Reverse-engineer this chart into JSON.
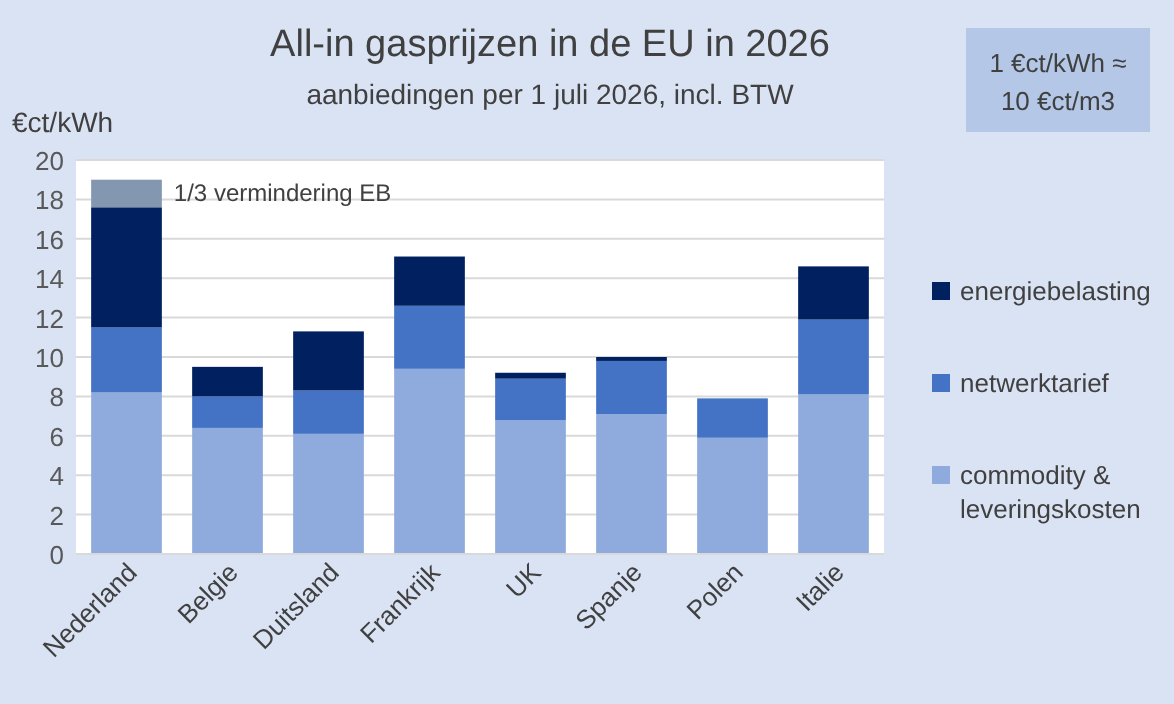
{
  "chart_data": {
    "type": "bar",
    "title": "All-in gasprijzen in de EU in 2026",
    "subtitle": "aanbiedingen per 1 juli 2026, incl. BTW",
    "ylabel": "€ct/kWh",
    "annotations": [
      "1 €ct/kWh ≈ 10 €ct/m3"
    ],
    "categories": [
      "Nederland",
      "Belgie",
      "Duitsland",
      "Frankrijk",
      "UK",
      "Spanje",
      "Polen",
      "Italie"
    ],
    "stacked": true,
    "ylim": [
      0,
      20
    ],
    "yticks": [
      0,
      2,
      4,
      6,
      8,
      10,
      12,
      14,
      16,
      18,
      20
    ],
    "grid": "y",
    "legend": "right",
    "series": [
      {
        "name": "commodity & leveringskosten",
        "color": "#8faadc",
        "values": [
          8.2,
          6.4,
          6.1,
          9.4,
          6.8,
          7.1,
          5.9,
          8.1
        ]
      },
      {
        "name": "netwerktarief",
        "color": "#4472c4",
        "values": [
          3.3,
          1.6,
          2.2,
          3.2,
          2.1,
          2.7,
          2.0,
          3.8
        ]
      },
      {
        "name": "energiebelasting",
        "color": "#002060",
        "values": [
          6.1,
          1.5,
          3.0,
          2.5,
          0.3,
          0.2,
          0,
          2.7
        ]
      },
      {
        "name": "1/3 vermindering EB",
        "color": "#8497b0",
        "values": [
          1.4,
          null,
          null,
          null,
          null,
          null,
          null,
          null
        ]
      }
    ]
  }
}
